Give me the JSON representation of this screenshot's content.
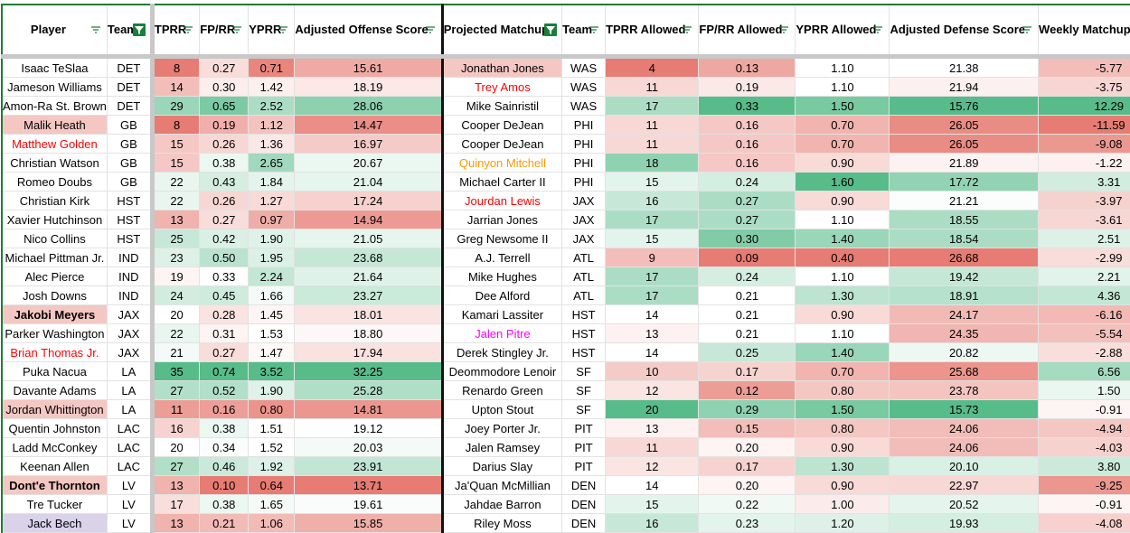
{
  "headers": [
    {
      "label": "Player",
      "filter": "plain"
    },
    {
      "label": "Team",
      "filter": "active"
    },
    {
      "label": "TPRR",
      "filter": "plain"
    },
    {
      "label": "FP/RR",
      "filter": "plain"
    },
    {
      "label": "YPRR",
      "filter": "plain"
    },
    {
      "label": "Adjusted Offense Score",
      "filter": "plain"
    },
    {
      "label": "Projected Matchup",
      "filter": "active"
    },
    {
      "label": "Team",
      "filter": "plain"
    },
    {
      "label": "TPRR Allowed",
      "filter": "plain"
    },
    {
      "label": "FP/RR Allowed",
      "filter": "plain"
    },
    {
      "label": "YPRR Allowed",
      "filter": "plain"
    },
    {
      "label": "Adjusted Defense Score",
      "filter": "plain"
    },
    {
      "label": "Weekly Matchup Score",
      "filter": "plain"
    }
  ],
  "colors": {
    "low_red": "#e67c73",
    "mid_white": "#ffffff",
    "high_green": "#57bb8a",
    "pink_bg": "#f4c7c3",
    "purple_bg": "#d9d2e9",
    "red_text": "#ff0000",
    "orange_text": "#ff9900",
    "magenta_text": "#ff00ff",
    "filter_green": "#188038"
  },
  "rows": [
    [
      "Isaac TeSlaa",
      "DET",
      "8",
      "0.27",
      "0.71",
      "15.61",
      "Jonathan Jones",
      "WAS",
      "4",
      "0.13",
      "1.10",
      "21.38",
      "-5.77"
    ],
    [
      "Jameson Williams",
      "DET",
      "14",
      "0.30",
      "1.42",
      "18.19",
      "Trey Amos",
      "WAS",
      "11",
      "0.19",
      "1.10",
      "21.94",
      "-3.75"
    ],
    [
      "Amon-Ra St. Brown",
      "DET",
      "29",
      "0.65",
      "2.52",
      "28.06",
      "Mike Sainristil",
      "WAS",
      "17",
      "0.33",
      "1.50",
      "15.76",
      "12.29"
    ],
    [
      "Malik Heath",
      "GB",
      "8",
      "0.19",
      "1.12",
      "14.47",
      "Cooper DeJean",
      "PHI",
      "11",
      "0.16",
      "0.70",
      "26.05",
      "-11.59"
    ],
    [
      "Matthew Golden",
      "GB",
      "15",
      "0.26",
      "1.36",
      "16.97",
      "Cooper DeJean",
      "PHI",
      "11",
      "0.16",
      "0.70",
      "26.05",
      "-9.08"
    ],
    [
      "Christian Watson",
      "GB",
      "15",
      "0.38",
      "2.65",
      "20.67",
      "Quinyon Mitchell",
      "PHI",
      "18",
      "0.16",
      "0.90",
      "21.89",
      "-1.22"
    ],
    [
      "Romeo Doubs",
      "GB",
      "22",
      "0.43",
      "1.84",
      "21.04",
      "Michael Carter II",
      "PHI",
      "15",
      "0.24",
      "1.60",
      "17.72",
      "3.31"
    ],
    [
      "Christian Kirk",
      "HST",
      "22",
      "0.26",
      "1.27",
      "17.24",
      "Jourdan Lewis",
      "JAX",
      "16",
      "0.27",
      "0.90",
      "21.21",
      "-3.97"
    ],
    [
      "Xavier Hutchinson",
      "HST",
      "13",
      "0.27",
      "0.97",
      "14.94",
      "Jarrian Jones",
      "JAX",
      "17",
      "0.27",
      "1.10",
      "18.55",
      "-3.61"
    ],
    [
      "Nico Collins",
      "HST",
      "25",
      "0.42",
      "1.90",
      "21.05",
      "Greg Newsome II",
      "JAX",
      "15",
      "0.30",
      "1.40",
      "18.54",
      "2.51"
    ],
    [
      "Michael Pittman Jr.",
      "IND",
      "23",
      "0.50",
      "1.95",
      "23.68",
      "A.J. Terrell",
      "ATL",
      "9",
      "0.09",
      "0.40",
      "26.68",
      "-2.99"
    ],
    [
      "Alec Pierce",
      "IND",
      "19",
      "0.33",
      "2.24",
      "21.64",
      "Mike Hughes",
      "ATL",
      "17",
      "0.24",
      "1.10",
      "19.42",
      "2.21"
    ],
    [
      "Josh Downs",
      "IND",
      "24",
      "0.45",
      "1.66",
      "23.27",
      "Dee Alford",
      "ATL",
      "17",
      "0.21",
      "1.30",
      "18.91",
      "4.36"
    ],
    [
      "Jakobi Meyers",
      "JAX",
      "20",
      "0.28",
      "1.45",
      "18.01",
      "Kamari Lassiter",
      "HST",
      "14",
      "0.21",
      "0.90",
      "24.17",
      "-6.16"
    ],
    [
      "Parker Washington",
      "JAX",
      "22",
      "0.31",
      "1.53",
      "18.80",
      "Jalen Pitre",
      "HST",
      "13",
      "0.21",
      "1.10",
      "24.35",
      "-5.54"
    ],
    [
      "Brian Thomas Jr.",
      "JAX",
      "21",
      "0.27",
      "1.47",
      "17.94",
      "Derek Stingley Jr.",
      "HST",
      "14",
      "0.25",
      "1.40",
      "20.82",
      "-2.88"
    ],
    [
      "Puka Nacua",
      "LA",
      "35",
      "0.74",
      "3.52",
      "32.25",
      "Deommodore Lenoir",
      "SF",
      "10",
      "0.17",
      "0.70",
      "25.68",
      "6.56"
    ],
    [
      "Davante Adams",
      "LA",
      "27",
      "0.52",
      "1.90",
      "25.28",
      "Renardo Green",
      "SF",
      "12",
      "0.12",
      "0.80",
      "23.78",
      "1.50"
    ],
    [
      "Jordan Whittington",
      "LA",
      "11",
      "0.16",
      "0.80",
      "14.81",
      "Upton Stout",
      "SF",
      "20",
      "0.29",
      "1.50",
      "15.73",
      "-0.91"
    ],
    [
      "Quentin Johnston",
      "LAC",
      "16",
      "0.38",
      "1.51",
      "19.12",
      "Joey Porter Jr.",
      "PIT",
      "13",
      "0.15",
      "0.80",
      "24.06",
      "-4.94"
    ],
    [
      "Ladd McConkey",
      "LAC",
      "20",
      "0.34",
      "1.52",
      "20.03",
      "Jalen Ramsey",
      "PIT",
      "11",
      "0.20",
      "0.90",
      "24.06",
      "-4.03"
    ],
    [
      "Keenan Allen",
      "LAC",
      "27",
      "0.46",
      "1.92",
      "23.91",
      "Darius Slay",
      "PIT",
      "12",
      "0.17",
      "1.30",
      "20.10",
      "3.80"
    ],
    [
      "Dont'e Thornton",
      "LV",
      "13",
      "0.10",
      "0.64",
      "13.71",
      "Ja'Quan McMillian",
      "DEN",
      "14",
      "0.20",
      "0.90",
      "22.97",
      "-9.25"
    ],
    [
      "Tre Tucker",
      "LV",
      "17",
      "0.38",
      "1.65",
      "19.61",
      "Jahdae Barron",
      "DEN",
      "15",
      "0.22",
      "1.00",
      "20.52",
      "-0.91"
    ],
    [
      "Jack Bech",
      "LV",
      "13",
      "0.21",
      "1.06",
      "15.85",
      "Riley Moss",
      "DEN",
      "16",
      "0.23",
      "1.20",
      "19.93",
      "-4.08"
    ]
  ],
  "player_highlights": {
    "3": "pink",
    "4": "red-text",
    "13": "bold-pink",
    "15": "red-text",
    "18": "pink",
    "22": "bold-pink",
    "24": "purple"
  },
  "matchup_highlights": {
    "0": "pink",
    "1": "red-text",
    "5": "orange-text",
    "7": "red-text",
    "14": "magenta-text"
  }
}
